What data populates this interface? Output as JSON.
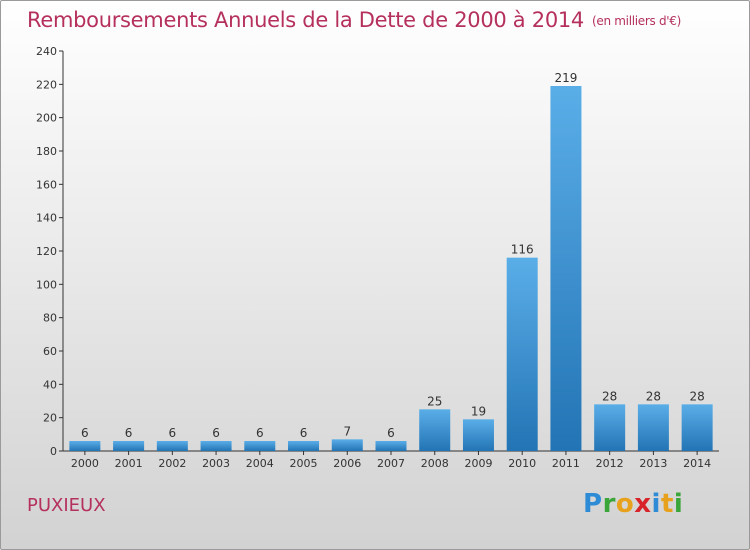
{
  "header": {
    "title": "Remboursements Annuels de la Dette de 2000 à 2014",
    "unit": "(en milliers d'€)"
  },
  "footer": {
    "commune": "PUXIEUX",
    "logo_letters": [
      "P",
      "r",
      "o",
      "x",
      "i",
      "t",
      "i"
    ]
  },
  "colors": {
    "title": "#b5315c",
    "bar_light": "#5aaee8",
    "bar_dark": "#2274b4",
    "axis": "#333333"
  },
  "chart_data": {
    "type": "bar",
    "title": "Remboursements Annuels de la Dette de 2000 à 2014",
    "xlabel": "",
    "ylabel": "",
    "categories": [
      "2000",
      "2001",
      "2002",
      "2003",
      "2004",
      "2005",
      "2006",
      "2007",
      "2008",
      "2009",
      "2010",
      "2011",
      "2012",
      "2013",
      "2014"
    ],
    "values": [
      6,
      6,
      6,
      6,
      6,
      6,
      7,
      6,
      25,
      19,
      116,
      219,
      28,
      28,
      28
    ],
    "data_labels": [
      "6",
      "6",
      "6",
      "6",
      "6",
      "6",
      "7",
      "6",
      "25",
      "19",
      "116",
      "219",
      "28",
      "28",
      "28"
    ],
    "ylim": [
      0,
      240
    ],
    "yticks": [
      0,
      20,
      40,
      60,
      80,
      100,
      120,
      140,
      160,
      180,
      200,
      220,
      240
    ],
    "grid": false,
    "legend": "none"
  }
}
